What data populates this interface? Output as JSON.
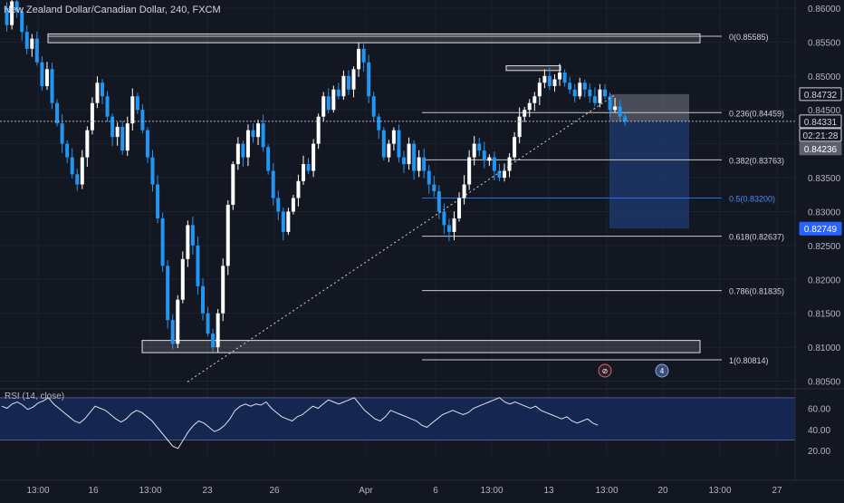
{
  "header": {
    "title": "New Zealand Dollar/Canadian Dollar, 240, FXCM"
  },
  "rsi": {
    "label": "RSI (14, close)"
  },
  "chart_data": {
    "type": "candlestick",
    "symbol": "NZDCAD",
    "timeframe": "240",
    "source": "FXCM",
    "ylim": [
      0.804,
      0.8612
    ],
    "price_ticks": [
      "0.86000",
      "0.85500",
      "0.85000",
      "0.84500",
      "0.84000",
      "0.83500",
      "0.83000",
      "0.82500",
      "0.82000",
      "0.81500",
      "0.81000",
      "0.80500"
    ],
    "x_ticks": [
      "13:00",
      "16",
      "13:00",
      "23",
      "26",
      "Apr",
      "6",
      "13:00",
      "13",
      "13:00",
      "20",
      "13:00",
      "27"
    ],
    "price_labels": [
      {
        "text": "0.84732",
        "kind": "outline"
      },
      {
        "text": "0.84331",
        "kind": "outline"
      },
      {
        "text": "02:21:28",
        "kind": "outline"
      },
      {
        "text": "0.84236",
        "kind": "grey"
      },
      {
        "text": "0.82749",
        "kind": "blue"
      }
    ],
    "fib_levels": [
      {
        "ratio": "0",
        "price": 0.85585,
        "label": "0(0.85585)"
      },
      {
        "ratio": "0.236",
        "price": 0.84459,
        "label": "0.236(0.84459)"
      },
      {
        "ratio": "0.382",
        "price": 0.83763,
        "label": "0.382(0.83763)"
      },
      {
        "ratio": "0.5",
        "price": 0.832,
        "label": "0.5(0.83200)",
        "highlight": true
      },
      {
        "ratio": "0.618",
        "price": 0.82637,
        "label": "0.618(0.82637)"
      },
      {
        "ratio": "0.786",
        "price": 0.81835,
        "label": "0.786(0.81835)"
      },
      {
        "ratio": "1",
        "price": 0.80814,
        "label": "1(0.80814)"
      }
    ],
    "zones": [
      {
        "name": "supply",
        "top": 0.8562,
        "bottom": 0.8549
      },
      {
        "name": "demand",
        "top": 0.811,
        "bottom": 0.8092
      },
      {
        "name": "recent-high",
        "top": 0.8515,
        "bottom": 0.8508
      }
    ],
    "short_position": {
      "entry": 0.84331,
      "stop": 0.84732,
      "target": 0.82749
    },
    "trendline": {
      "from_price": 0.8049,
      "to_price": 0.8473
    },
    "current_price": 0.84331,
    "rsi_axis_ticks": [
      "60.00",
      "40.00",
      "20.00"
    ],
    "rsi_band": [
      70,
      30
    ],
    "rsi_ylim": [
      15,
      75
    ],
    "event_markers": [
      {
        "name": "event-flag",
        "text": "⊘"
      },
      {
        "name": "country-flag",
        "text": "4"
      }
    ],
    "colors": {
      "background": "#131722",
      "up": "#ffffff",
      "down": "#2196f3",
      "grid": "#1e222d",
      "fib_line": "#c8c8c8",
      "fib_mid": "#2a6fdb",
      "rsi_band": "#152650",
      "rsi_line": "#e0e3eb",
      "target_zone": "#1e3a6e",
      "stop_zone": "#5a5f6b"
    },
    "price_path": [
      0.86,
      0.8575,
      0.861,
      0.8595,
      0.8565,
      0.854,
      0.8555,
      0.852,
      0.8485,
      0.851,
      0.846,
      0.843,
      0.84,
      0.838,
      0.8355,
      0.834,
      0.838,
      0.842,
      0.846,
      0.849,
      0.847,
      0.844,
      0.841,
      0.8425,
      0.839,
      0.843,
      0.847,
      0.845,
      0.842,
      0.838,
      0.834,
      0.829,
      0.822,
      0.814,
      0.8105,
      0.817,
      0.823,
      0.828,
      0.825,
      0.819,
      0.815,
      0.812,
      0.81,
      0.815,
      0.822,
      0.831,
      0.837,
      0.84,
      0.838,
      0.842,
      0.841,
      0.843,
      0.8395,
      0.836,
      0.832,
      0.83,
      0.827,
      0.83,
      0.832,
      0.8345,
      0.837,
      0.836,
      0.84,
      0.844,
      0.847,
      0.845,
      0.848,
      0.847,
      0.85,
      0.848,
      0.851,
      0.854,
      0.852,
      0.847,
      0.844,
      0.842,
      0.838,
      0.84,
      0.842,
      0.838,
      0.837,
      0.84,
      0.836,
      0.838,
      0.836,
      0.834,
      0.833,
      0.83,
      0.828,
      0.827,
      0.829,
      0.832,
      0.834,
      0.838,
      0.84,
      0.839,
      0.8375,
      0.838,
      0.836,
      0.835,
      0.836,
      0.838,
      0.841,
      0.844,
      0.845,
      0.846,
      0.847,
      0.849,
      0.85,
      0.8485,
      0.8495,
      0.8505,
      0.849,
      0.848,
      0.847,
      0.849,
      0.848,
      0.847,
      0.846,
      0.848,
      0.847,
      0.845,
      0.8455,
      0.844,
      0.8433
    ],
    "rsi_values": [
      62,
      60,
      64,
      66,
      63,
      59,
      61,
      65,
      67,
      70,
      64,
      60,
      56,
      52,
      48,
      46,
      50,
      56,
      62,
      60,
      58,
      54,
      50,
      47,
      50,
      55,
      58,
      56,
      52,
      48,
      42,
      36,
      30,
      24,
      22,
      30,
      38,
      44,
      48,
      46,
      42,
      38,
      40,
      44,
      50,
      58,
      62,
      64,
      62,
      64,
      63,
      66,
      60,
      56,
      52,
      50,
      48,
      52,
      54,
      58,
      62,
      60,
      64,
      68,
      66,
      64,
      66,
      68,
      70,
      64,
      58,
      54,
      50,
      48,
      52,
      58,
      56,
      54,
      52,
      50,
      48,
      44,
      42,
      46,
      50,
      54,
      56,
      58,
      56,
      54,
      56,
      60,
      62,
      64,
      66,
      68,
      70,
      66,
      64,
      66,
      64,
      62,
      60,
      62,
      58,
      56,
      54,
      52,
      50,
      52,
      48,
      46,
      48,
      50,
      46,
      44
    ],
    "rsi_start_x": 0,
    "candle_spacing": 5.55
  }
}
